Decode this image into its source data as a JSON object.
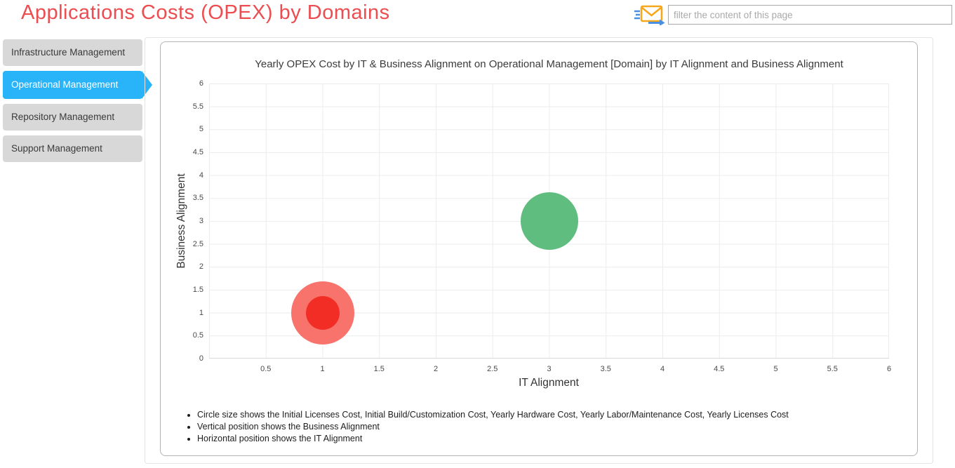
{
  "page": {
    "title": "Applications Costs (OPEX) by Domains"
  },
  "filter": {
    "placeholder": "filter the content of this page",
    "icon": "send-email-icon"
  },
  "sidebar": {
    "items": [
      {
        "label": "Infrastructure Management",
        "active": false
      },
      {
        "label": "Operational Management",
        "active": true
      },
      {
        "label": "Repository Management",
        "active": false
      },
      {
        "label": "Support Management",
        "active": false
      }
    ]
  },
  "chart": {
    "title": "Yearly OPEX Cost by IT & Business Alignment on Operational Management [Domain] by IT Alignment and Business Alignment",
    "notes": [
      "Circle size shows the Initial Licenses Cost, Initial Build/Customization Cost, Yearly Hardware Cost, Yearly Labor/Maintenance Cost, Yearly Licenses Cost",
      "Vertical position shows the Business Alignment",
      "Horizontal position shows the IT Alignment"
    ]
  },
  "chart_data": {
    "type": "bubble",
    "title": "Yearly OPEX Cost by IT & Business Alignment on Operational Management [Domain] by IT Alignment and Business Alignment",
    "xlabel": "IT Alignment",
    "ylabel": "Business Alignment",
    "xlim": [
      0,
      6
    ],
    "ylim": [
      0,
      6
    ],
    "xticks": [
      0.5,
      1,
      1.5,
      2,
      2.5,
      3,
      3.5,
      4,
      4.5,
      5,
      5.5,
      6
    ],
    "yticks": [
      0,
      0.5,
      1,
      1.5,
      2,
      2.5,
      3,
      3.5,
      4,
      4.5,
      5,
      5.5,
      6
    ],
    "grid": true,
    "legend": "none",
    "points": [
      {
        "x": 1,
        "y": 1,
        "radius_px": 45,
        "color": "#f8736b"
      },
      {
        "x": 1,
        "y": 1,
        "radius_px": 24,
        "color": "#f22d26"
      },
      {
        "x": 3,
        "y": 3,
        "radius_px": 41,
        "color": "#5fbd7f"
      }
    ]
  },
  "colors": {
    "accent_blue": "#29b3f8",
    "title_red": "#eb4d50",
    "tab_gray": "#d8d8d8",
    "grid": "#ececec",
    "bubble_red_outer": "#f8736b",
    "bubble_red_inner": "#f22d26",
    "bubble_green": "#5fbd7f"
  }
}
